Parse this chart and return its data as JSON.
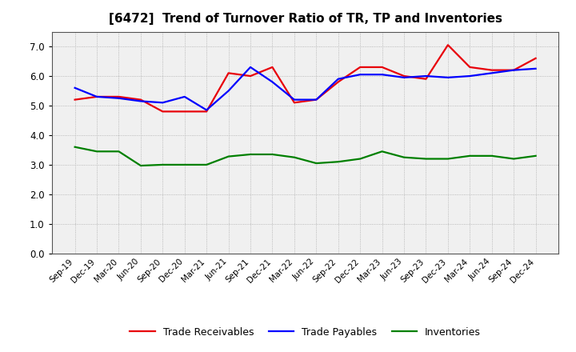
{
  "title": "[6472]  Trend of Turnover Ratio of TR, TP and Inventories",
  "x_labels": [
    "Sep-19",
    "Dec-19",
    "Mar-20",
    "Jun-20",
    "Sep-20",
    "Dec-20",
    "Mar-21",
    "Jun-21",
    "Sep-21",
    "Dec-21",
    "Mar-22",
    "Jun-22",
    "Sep-22",
    "Dec-22",
    "Mar-23",
    "Jun-23",
    "Sep-23",
    "Dec-23",
    "Mar-24",
    "Jun-24",
    "Sep-24",
    "Dec-24"
  ],
  "trade_receivables": [
    5.2,
    5.3,
    5.3,
    5.2,
    4.8,
    4.8,
    4.8,
    6.1,
    6.0,
    6.3,
    5.1,
    5.2,
    5.8,
    6.3,
    6.3,
    6.0,
    5.9,
    7.05,
    6.3,
    6.2,
    6.2,
    6.6
  ],
  "trade_payables": [
    5.6,
    5.3,
    5.25,
    5.15,
    5.1,
    5.3,
    4.85,
    5.5,
    6.3,
    5.8,
    5.2,
    5.2,
    5.9,
    6.05,
    6.05,
    5.95,
    6.0,
    5.95,
    6.0,
    6.1,
    6.2,
    6.25
  ],
  "inventories": [
    3.6,
    3.45,
    3.45,
    2.97,
    3.0,
    3.0,
    3.0,
    3.28,
    3.35,
    3.35,
    3.25,
    3.05,
    3.1,
    3.2,
    3.45,
    3.25,
    3.2,
    3.2,
    3.3,
    3.3,
    3.2,
    3.3
  ],
  "tr_color": "#e8000a",
  "tp_color": "#0000ff",
  "inv_color": "#008000",
  "ylim": [
    0.0,
    7.5
  ],
  "yticks": [
    0.0,
    1.0,
    2.0,
    3.0,
    4.0,
    5.0,
    6.0,
    7.0
  ],
  "background_color": "#ffffff",
  "plot_bg_color": "#f0f0f0",
  "grid_color": "#aaaaaa",
  "legend_labels": [
    "Trade Receivables",
    "Trade Payables",
    "Inventories"
  ],
  "line_width": 1.6,
  "title_fontsize": 11,
  "tick_fontsize": 7.5,
  "ytick_fontsize": 8.5,
  "legend_fontsize": 9
}
